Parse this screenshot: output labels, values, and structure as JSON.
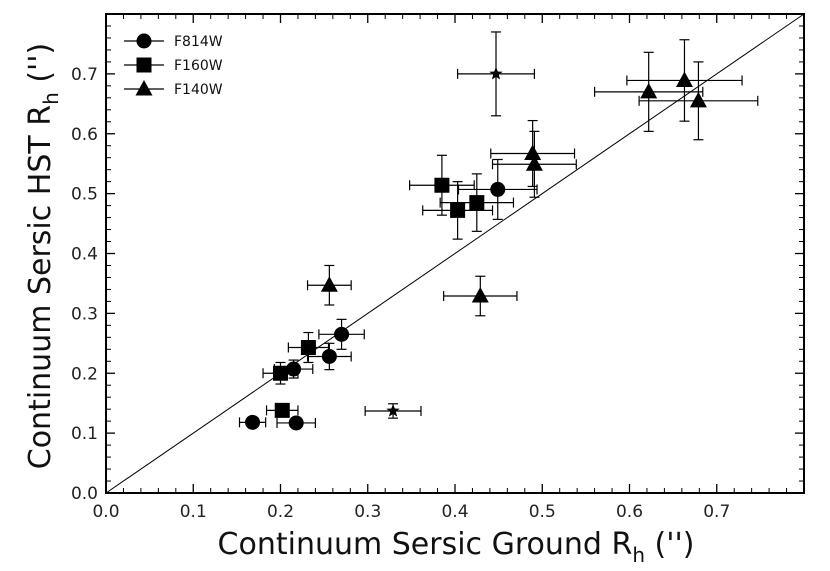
{
  "chart_data": {
    "type": "scatter",
    "xlabel_main": "Continuum Sersic Ground R",
    "xlabel_sub": "h",
    "xlabel_tail": " ('')",
    "ylabel_main": "Continuum Sersic HST R",
    "ylabel_sub": "h",
    "ylabel_tail": " ('')",
    "xlim": [
      0.0,
      0.8
    ],
    "ylim": [
      0.0,
      0.8
    ],
    "xticks": [
      "0.0",
      "0.1",
      "0.2",
      "0.3",
      "0.4",
      "0.5",
      "0.6",
      "0.7"
    ],
    "yticks": [
      "0.0",
      "0.1",
      "0.2",
      "0.3",
      "0.4",
      "0.5",
      "0.6",
      "0.7"
    ],
    "reference_line": "y = x",
    "legend_position": "top-left",
    "legend": [
      "F814W",
      "F160W",
      "F140W"
    ],
    "series": [
      {
        "name": "F814W",
        "marker": "circle",
        "points": [
          {
            "x": 0.168,
            "y": 0.118,
            "xerr": 0.015,
            "yerr": 0.0
          },
          {
            "x": 0.218,
            "y": 0.117,
            "xerr": 0.022,
            "yerr": 0.0
          },
          {
            "x": 0.215,
            "y": 0.207,
            "xerr": 0.022,
            "yerr": 0.015
          },
          {
            "x": 0.256,
            "y": 0.228,
            "xerr": 0.025,
            "yerr": 0.022
          },
          {
            "x": 0.27,
            "y": 0.265,
            "xerr": 0.026,
            "yerr": 0.025
          },
          {
            "x": 0.449,
            "y": 0.507,
            "xerr": 0.045,
            "yerr": 0.05
          }
        ]
      },
      {
        "name": "F160W",
        "marker": "square",
        "points": [
          {
            "x": 0.202,
            "y": 0.138,
            "xerr": 0.018,
            "yerr": 0.01
          },
          {
            "x": 0.2,
            "y": 0.2,
            "xerr": 0.02,
            "yerr": 0.018
          },
          {
            "x": 0.232,
            "y": 0.243,
            "xerr": 0.023,
            "yerr": 0.025
          },
          {
            "x": 0.385,
            "y": 0.514,
            "xerr": 0.037,
            "yerr": 0.05
          },
          {
            "x": 0.403,
            "y": 0.472,
            "xerr": 0.04,
            "yerr": 0.048
          },
          {
            "x": 0.425,
            "y": 0.485,
            "xerr": 0.042,
            "yerr": 0.048
          }
        ]
      },
      {
        "name": "F140W",
        "marker": "triangle",
        "points": [
          {
            "x": 0.256,
            "y": 0.347,
            "xerr": 0.025,
            "yerr": 0.033
          },
          {
            "x": 0.429,
            "y": 0.329,
            "xerr": 0.042,
            "yerr": 0.033
          },
          {
            "x": 0.489,
            "y": 0.567,
            "xerr": 0.048,
            "yerr": 0.055
          },
          {
            "x": 0.491,
            "y": 0.549,
            "xerr": 0.048,
            "yerr": 0.055
          },
          {
            "x": 0.622,
            "y": 0.67,
            "xerr": 0.062,
            "yerr": 0.066
          },
          {
            "x": 0.663,
            "y": 0.689,
            "xerr": 0.066,
            "yerr": 0.068
          },
          {
            "x": 0.679,
            "y": 0.655,
            "xerr": 0.068,
            "yerr": 0.065
          }
        ]
      },
      {
        "name": "star",
        "marker": "star",
        "points": [
          {
            "x": 0.447,
            "y": 0.7,
            "xerr": 0.044,
            "yerr": 0.07
          },
          {
            "x": 0.329,
            "y": 0.137,
            "xerr": 0.032,
            "yerr": 0.012
          }
        ]
      }
    ]
  }
}
